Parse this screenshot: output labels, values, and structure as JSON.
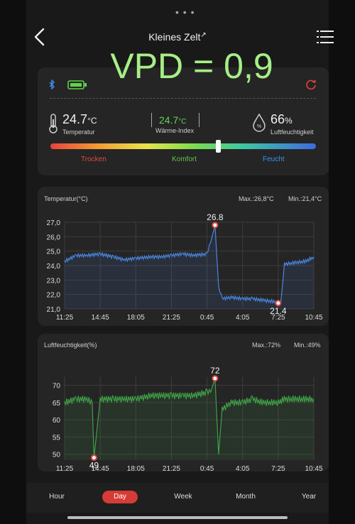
{
  "header": {
    "title": "Kleines Zelt",
    "overlay_text": "VPD = 0,9"
  },
  "readings": {
    "temperature": {
      "value": "24.7",
      "unit": "°C",
      "label": "Temperatur"
    },
    "heat_index": {
      "value": "24.7",
      "unit": "°C",
      "label": "Wärme-Index"
    },
    "humidity": {
      "value": "66",
      "unit": "%",
      "label": "Luftfeuchtigkeit"
    }
  },
  "comfort_scale": {
    "labels": [
      "Trocken",
      "Komfort",
      "Feucht"
    ],
    "position": 0.63
  },
  "temp_chart": {
    "title": "Temperatur(°C)",
    "max_label": "Max.:26,8°C",
    "min_label": "Min.:21,4°C",
    "peak_label": "26.8",
    "low_label": "21.4",
    "yticks": [
      "27,0",
      "26,0",
      "25,0",
      "24,0",
      "23,0",
      "22,0",
      "21,0"
    ],
    "xticks": [
      "11:25",
      "14:45",
      "18:05",
      "21:25",
      "0:45",
      "4:05",
      "7:25",
      "10:45"
    ]
  },
  "hum_chart": {
    "title": "Luftfeuchtigkeit(%)",
    "max_label": "Max.:72%",
    "min_label": "Min.:49%",
    "peak_label": "72",
    "low_label": "49",
    "yticks": [
      "70",
      "65",
      "60",
      "55",
      "50"
    ],
    "xticks": [
      "11:25",
      "14:45",
      "18:05",
      "21:25",
      "0:45",
      "4:05",
      "7:25",
      "10:45"
    ]
  },
  "nav": {
    "tabs": [
      "Hour",
      "Day",
      "Week",
      "Month",
      "Year"
    ],
    "active": "Day"
  },
  "colors": {
    "vpd_overlay": "#a8ee86",
    "temp_line": "#4a86e0",
    "hum_line": "#3fa048",
    "accent_red": "#d63b35"
  },
  "chart_data": [
    {
      "type": "line",
      "title": "Temperatur(°C)",
      "xlabel": "",
      "ylabel": "",
      "x": [
        "11:25",
        "12:30",
        "13:30",
        "14:45",
        "16:00",
        "17:00",
        "18:05",
        "19:30",
        "20:30",
        "21:25",
        "22:30",
        "23:30",
        "0:45",
        "1:05",
        "1:30",
        "1:50",
        "2:10",
        "3:00",
        "4:05",
        "5:00",
        "6:00",
        "7:00",
        "7:25",
        "7:40",
        "8:00",
        "9:00",
        "10:00",
        "10:45"
      ],
      "series": [
        {
          "values": [
            24.3,
            24.7,
            24.7,
            24.8,
            24.6,
            24.4,
            24.5,
            24.6,
            24.6,
            24.7,
            24.8,
            24.7,
            24.8,
            25.6,
            26.8,
            22.5,
            21.7,
            21.8,
            21.7,
            21.7,
            21.6,
            21.5,
            21.4,
            21.5,
            24.1,
            24.2,
            24.3,
            24.6
          ]
        }
      ],
      "ylim": [
        21.0,
        27.0
      ],
      "annotations": [
        {
          "x": "1:30",
          "y": 26.8,
          "label": "26.8"
        },
        {
          "x": "7:25",
          "y": 21.4,
          "label": "21.4"
        }
      ]
    },
    {
      "type": "line",
      "title": "Luftfeuchtigkeit(%)",
      "xlabel": "",
      "ylabel": "",
      "x": [
        "11:25",
        "12:30",
        "13:30",
        "14:00",
        "14:10",
        "14:45",
        "16:00",
        "17:00",
        "18:05",
        "19:30",
        "20:30",
        "21:25",
        "22:30",
        "23:30",
        "0:45",
        "1:05",
        "1:30",
        "1:50",
        "2:10",
        "3:00",
        "4:05",
        "5:00",
        "6:00",
        "7:00",
        "7:25",
        "8:00",
        "9:00",
        "10:00",
        "10:45"
      ],
      "series": [
        {
          "values": [
            65,
            66,
            66,
            65,
            49,
            66,
            66,
            66,
            66,
            67,
            67,
            67,
            67,
            67,
            68,
            68,
            72,
            50,
            63,
            65,
            65,
            66,
            65,
            65,
            65,
            66,
            66,
            66,
            66
          ]
        }
      ],
      "ylim": [
        48,
        73
      ],
      "annotations": [
        {
          "x": "1:30",
          "y": 72,
          "label": "72"
        },
        {
          "x": "14:10",
          "y": 49,
          "label": "49"
        }
      ]
    }
  ]
}
